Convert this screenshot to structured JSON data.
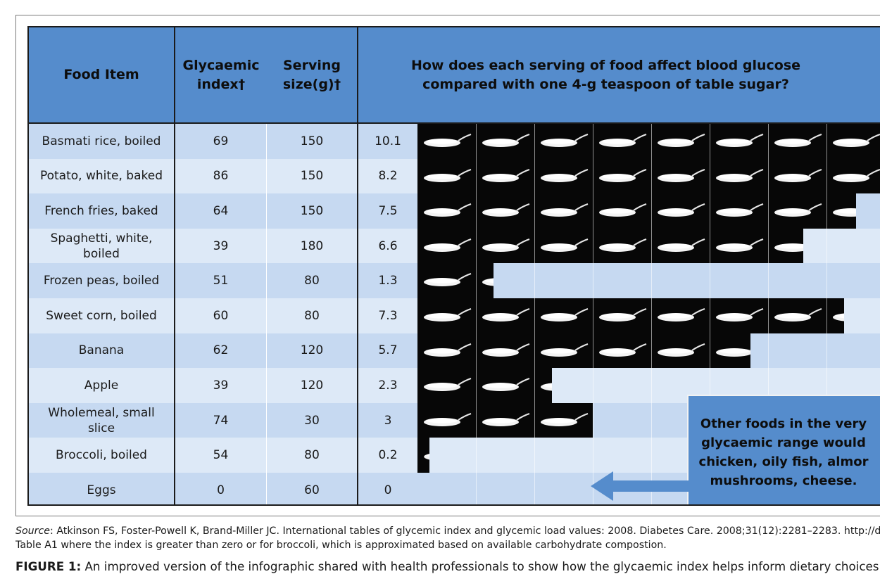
{
  "header": {
    "food_item": "Food Item",
    "glycaemic_index": "Glycaemic\nindex†",
    "serving_size": "Serving\nsize(g)†",
    "question": "How does each serving of food affect blood glucose\ncompared with one 4-g teaspoon of table sugar?"
  },
  "rows": [
    {
      "food": "Basmati rice, boiled",
      "gi": "69",
      "serving": "150",
      "teaspoons": "10.1"
    },
    {
      "food": "Potato, white, baked",
      "gi": "86",
      "serving": "150",
      "teaspoons": "8.2"
    },
    {
      "food": "French fries, baked",
      "gi": "64",
      "serving": "150",
      "teaspoons": "7.5"
    },
    {
      "food": "Spaghetti, white, boiled",
      "gi": "39",
      "serving": "180",
      "teaspoons": "6.6"
    },
    {
      "food": "Frozen peas, boiled",
      "gi": "51",
      "serving": "80",
      "teaspoons": "1.3"
    },
    {
      "food": "Sweet corn, boiled",
      "gi": "60",
      "serving": "80",
      "teaspoons": "7.3"
    },
    {
      "food": "Banana",
      "gi": "62",
      "serving": "120",
      "teaspoons": "5.7"
    },
    {
      "food": "Apple",
      "gi": "39",
      "serving": "120",
      "teaspoons": "2.3"
    },
    {
      "food": "Wholemeal, small slice",
      "gi": "74",
      "serving": "30",
      "teaspoons": "3"
    },
    {
      "food": "Broccoli, boiled",
      "gi": "54",
      "serving": "80",
      "teaspoons": "0.2"
    },
    {
      "food": "Eggs",
      "gi": "0",
      "serving": "60",
      "teaspoons": "0"
    }
  ],
  "callout": "Other foods in the very\nglycaemic range would\nchicken, oily fish, almor\nmushrooms, cheese.",
  "source": {
    "label": "Source",
    "text": ": Atkinson FS, Foster-Powell K, Brand-Miller JC. International tables of glycemic index and glycemic load values: 2008. Diabetes Care. 2008;31(12):2281–2283. http://dx.d",
    "line2": "Table A1 where the index is greater than zero or for broccoli, which is approximated based on available carbohydrate compostion."
  },
  "caption": {
    "label": "FIGURE 1:",
    "text": " An improved version of the infographic shared with health professionals to show how the glycaemic index helps inform dietary choices."
  },
  "colors": {
    "header_blue": "#558ccc",
    "row_dark": "#c6d9f1",
    "row_light": "#dde9f7",
    "sugar_background": "#070707"
  }
}
